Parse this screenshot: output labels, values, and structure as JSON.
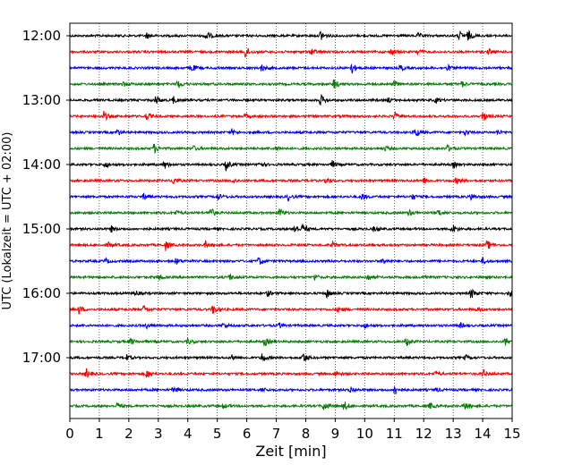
{
  "chart_data": {
    "type": "line",
    "title": "",
    "xlabel": "Zeit  [min]",
    "ylabel": "UTC (Lokalzeit = UTC + 02:00)",
    "xlim": [
      0,
      15
    ],
    "x_ticks": [
      "0",
      "1",
      "2",
      "3",
      "4",
      "5",
      "6",
      "7",
      "8",
      "9",
      "10",
      "11",
      "12",
      "13",
      "14",
      "15"
    ],
    "y_ticks": [
      "12:00",
      "13:00",
      "14:00",
      "15:00",
      "16:00",
      "17:00"
    ],
    "grid": "vertical dotted at each minute",
    "trace_colors": [
      "#000000",
      "#ff0000",
      "#0000ff",
      "#008000"
    ],
    "series": [
      {
        "start": "12:00",
        "events": [
          [
            2.6,
            0.5
          ],
          [
            4.6,
            1.0
          ],
          [
            8.5,
            0.9
          ],
          [
            11.8,
            0.4
          ],
          [
            13.2,
            0.7
          ],
          [
            13.5,
            0.8
          ]
        ]
      },
      {
        "start": "12:15",
        "events": [
          [
            5.95,
            1.0
          ],
          [
            8.2,
            0.6
          ],
          [
            10.9,
            0.6
          ],
          [
            11.8,
            0.4
          ],
          [
            14.2,
            0.4
          ]
        ]
      },
      {
        "start": "12:30",
        "events": [
          [
            4.1,
            0.7
          ],
          [
            6.5,
            0.6
          ],
          [
            9.55,
            0.9
          ],
          [
            11.2,
            0.5
          ],
          [
            12.8,
            0.5
          ]
        ]
      },
      {
        "start": "12:45",
        "events": [
          [
            1.8,
            0.4
          ],
          [
            3.65,
            0.8
          ],
          [
            8.95,
            0.9
          ],
          [
            11.0,
            0.5
          ],
          [
            13.3,
            0.4
          ]
        ]
      },
      {
        "start": "13:00",
        "events": [
          [
            2.9,
            0.8
          ],
          [
            3.5,
            0.6
          ],
          [
            8.5,
            0.9
          ],
          [
            10.8,
            0.4
          ],
          [
            12.4,
            0.4
          ]
        ]
      },
      {
        "start": "13:15",
        "events": [
          [
            1.15,
            0.8
          ],
          [
            2.6,
            0.6
          ],
          [
            5.95,
            0.4
          ],
          [
            11.0,
            0.6
          ],
          [
            14.0,
            0.9
          ]
        ]
      },
      {
        "start": "13:30",
        "events": [
          [
            1.6,
            0.5
          ],
          [
            5.5,
            0.4
          ],
          [
            11.7,
            0.9
          ],
          [
            13.4,
            0.4
          ],
          [
            14.5,
            0.4
          ]
        ]
      },
      {
        "start": "13:45",
        "events": [
          [
            2.85,
            0.8
          ],
          [
            4.2,
            0.4
          ],
          [
            7.0,
            0.4
          ],
          [
            10.7,
            0.4
          ],
          [
            12.8,
            0.5
          ]
        ]
      },
      {
        "start": "14:00",
        "events": [
          [
            1.2,
            0.5
          ],
          [
            3.2,
            0.7
          ],
          [
            5.3,
            0.9
          ],
          [
            6.4,
            0.6
          ],
          [
            8.9,
            0.6
          ],
          [
            13.0,
            0.5
          ]
        ]
      },
      {
        "start": "14:15",
        "events": [
          [
            3.5,
            0.7
          ],
          [
            5.5,
            0.5
          ],
          [
            8.7,
            0.5
          ],
          [
            12.0,
            0.5
          ],
          [
            13.1,
            0.5
          ]
        ]
      },
      {
        "start": "14:30",
        "events": [
          [
            2.5,
            0.5
          ],
          [
            5.0,
            0.6
          ],
          [
            7.4,
            0.5
          ],
          [
            9.9,
            0.6
          ],
          [
            11.6,
            0.5
          ],
          [
            13.6,
            0.5
          ]
        ]
      },
      {
        "start": "14:45",
        "events": [
          [
            3.6,
            0.4
          ],
          [
            4.75,
            1.0
          ],
          [
            7.1,
            0.8
          ],
          [
            11.5,
            0.5
          ],
          [
            12.5,
            0.6
          ]
        ]
      },
      {
        "start": "15:00",
        "events": [
          [
            1.4,
            0.5
          ],
          [
            7.6,
            0.8
          ],
          [
            7.9,
            0.9
          ],
          [
            10.3,
            0.4
          ],
          [
            12.95,
            0.9
          ]
        ]
      },
      {
        "start": "15:15",
        "events": [
          [
            1.3,
            0.4
          ],
          [
            3.25,
            0.8
          ],
          [
            4.6,
            0.5
          ],
          [
            8.9,
            0.6
          ],
          [
            14.15,
            0.8
          ]
        ]
      },
      {
        "start": "15:30",
        "events": [
          [
            1.2,
            0.4
          ],
          [
            3.6,
            0.5
          ],
          [
            6.4,
            0.7
          ],
          [
            10.6,
            0.5
          ],
          [
            14.0,
            0.5
          ]
        ]
      },
      {
        "start": "15:45",
        "events": [
          [
            3.0,
            0.5
          ],
          [
            5.4,
            0.5
          ],
          [
            8.3,
            0.5
          ],
          [
            10.1,
            0.6
          ],
          [
            12.0,
            0.4
          ]
        ]
      },
      {
        "start": "16:00",
        "events": [
          [
            2.2,
            0.5
          ],
          [
            6.7,
            0.5
          ],
          [
            8.7,
            0.8
          ],
          [
            13.6,
            0.9
          ],
          [
            14.9,
            0.6
          ]
        ]
      },
      {
        "start": "16:15",
        "events": [
          [
            0.3,
            0.7
          ],
          [
            2.5,
            0.6
          ],
          [
            4.85,
            0.8
          ],
          [
            9.1,
            0.5
          ],
          [
            13.8,
            0.4
          ]
        ]
      },
      {
        "start": "16:30",
        "events": [
          [
            2.6,
            0.4
          ],
          [
            5.2,
            0.4
          ],
          [
            7.1,
            0.4
          ],
          [
            10.0,
            0.4
          ],
          [
            13.2,
            0.5
          ]
        ]
      },
      {
        "start": "16:45",
        "events": [
          [
            2.05,
            0.5
          ],
          [
            4.0,
            0.4
          ],
          [
            6.6,
            0.7
          ],
          [
            11.4,
            0.8
          ],
          [
            14.75,
            0.8
          ]
        ]
      },
      {
        "start": "17:00",
        "events": [
          [
            1.9,
            0.5
          ],
          [
            5.5,
            0.4
          ],
          [
            6.5,
            0.9
          ],
          [
            7.9,
            0.9
          ],
          [
            13.4,
            0.4
          ]
        ]
      },
      {
        "start": "17:15",
        "events": [
          [
            0.55,
            0.8
          ],
          [
            2.6,
            0.8
          ],
          [
            9.0,
            0.5
          ],
          [
            12.4,
            0.4
          ],
          [
            14.0,
            0.7
          ]
        ]
      },
      {
        "start": "17:30",
        "events": [
          [
            3.5,
            0.6
          ],
          [
            6.5,
            0.4
          ],
          [
            9.5,
            0.6
          ],
          [
            11.0,
            1.0
          ],
          [
            12.4,
            0.4
          ]
        ]
      },
      {
        "start": "17:45",
        "events": [
          [
            1.6,
            0.5
          ],
          [
            5.2,
            0.4
          ],
          [
            8.6,
            0.8
          ],
          [
            9.3,
            0.8
          ],
          [
            12.2,
            0.5
          ],
          [
            13.4,
            0.8
          ]
        ]
      }
    ]
  }
}
